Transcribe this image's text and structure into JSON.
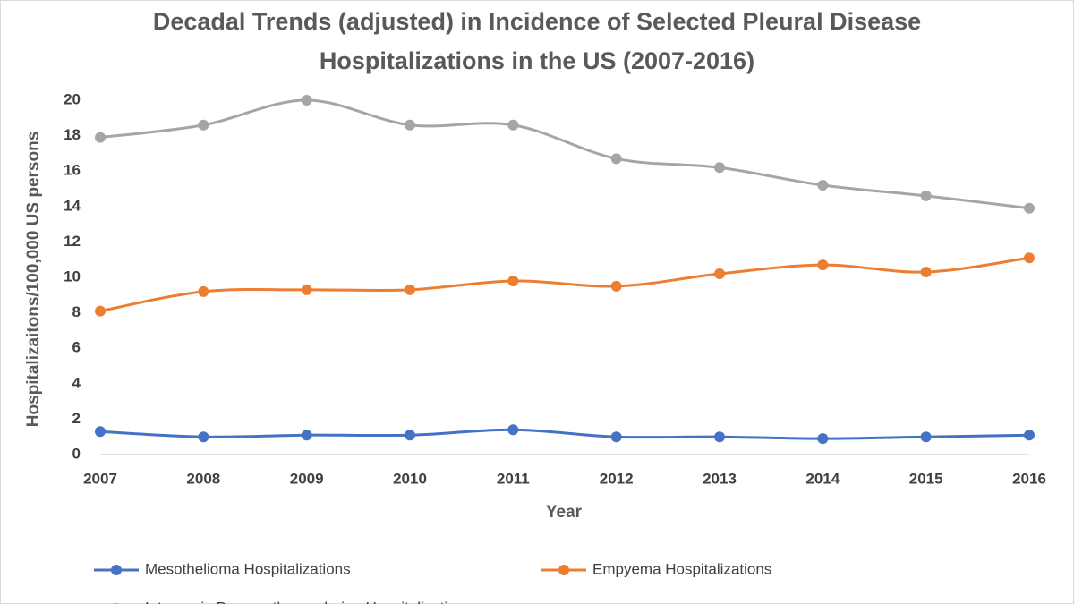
{
  "chart_data": {
    "type": "line",
    "title": "Decadal Trends (adjusted) in Incidence of Selected Pleural Disease Hospitalizations in the US (2007-2016)",
    "x_label": "Year",
    "y_label": "Hospitalizaitons/100,000 US persons",
    "categories": [
      "2007",
      "2008",
      "2009",
      "2010",
      "2011",
      "2012",
      "2013",
      "2014",
      "2015",
      "2016"
    ],
    "series": [
      {
        "name": "Mesothelioma Hospitalizations",
        "color": "#4472c4",
        "values": [
          1.3,
          1.0,
          1.1,
          1.1,
          1.4,
          1.0,
          1.0,
          0.9,
          1.0,
          1.1
        ]
      },
      {
        "name": "Empyema Hospitalizations",
        "color": "#ed7d31",
        "values": [
          8.1,
          9.2,
          9.3,
          9.3,
          9.8,
          9.5,
          10.2,
          10.7,
          10.3,
          11.1
        ]
      },
      {
        "name": "Iatrogenic Pneumothorax during Hospitalizations",
        "color": "#a5a5a5",
        "values": [
          17.9,
          18.6,
          20.0,
          18.6,
          18.6,
          16.7,
          16.2,
          15.2,
          14.6,
          13.9
        ]
      }
    ],
    "ylim": [
      0,
      20
    ],
    "yticks": [
      0,
      2,
      4,
      6,
      8,
      10,
      12,
      14,
      16,
      18,
      20
    ],
    "grid": false,
    "smooth": true,
    "legend": "bottom"
  }
}
